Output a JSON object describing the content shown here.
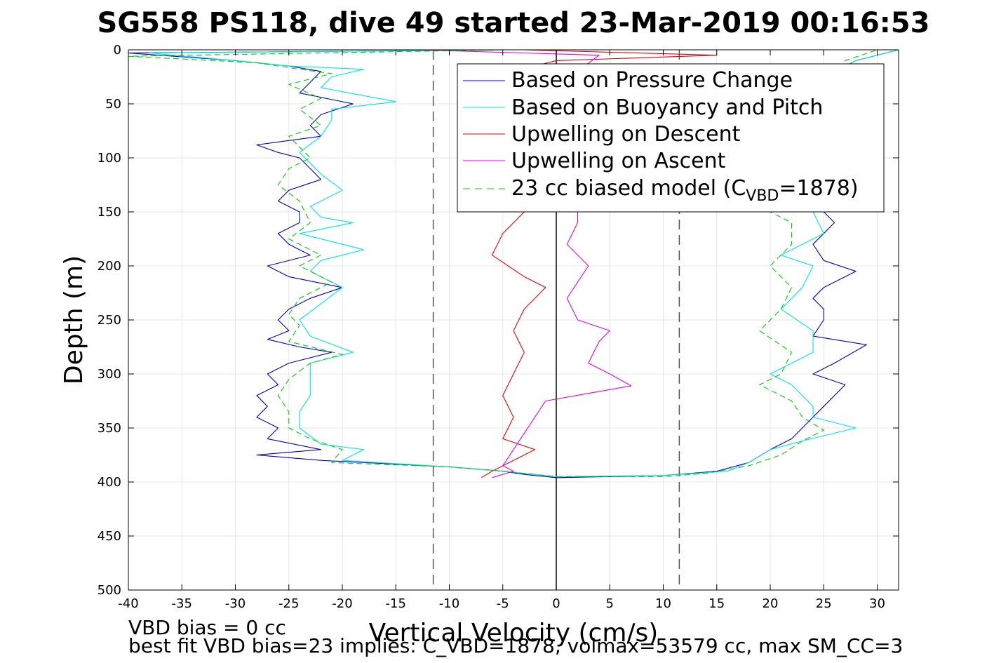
{
  "chart_data": {
    "type": "line",
    "title": "SG558 PS118, dive 49 started 23-Mar-2019 00:16:53",
    "xlabel": "Vertical Velocity (cm/s)",
    "ylabel": "Depth (m)",
    "xlim": [
      -40,
      32
    ],
    "ylim": [
      0,
      500
    ],
    "y_reversed": true,
    "grid": true,
    "legend_position": "top-right",
    "xticks": [
      -40,
      -35,
      -30,
      -25,
      -20,
      -15,
      -10,
      -5,
      0,
      5,
      10,
      15,
      20,
      25,
      30
    ],
    "yticks": [
      0,
      50,
      100,
      150,
      200,
      250,
      300,
      350,
      400,
      450,
      500
    ],
    "reference_lines": [
      {
        "x": -11.5,
        "style": "dashed",
        "color": "#555555"
      },
      {
        "x": 0,
        "style": "solid",
        "color": "#000000"
      },
      {
        "x": 11.5,
        "style": "dashed",
        "color": "#555555"
      }
    ],
    "legend": [
      {
        "label": "Based on Pressure Change",
        "color": "#0000cc",
        "style": "solid"
      },
      {
        "label": "Based on Buoyancy and Pitch",
        "color": "#00e5e5",
        "style": "solid"
      },
      {
        "label": "Upwelling on Descent",
        "color": "#e60000",
        "style": "solid"
      },
      {
        "label": "Upwelling on Ascent",
        "color": "#e600e6",
        "style": "solid"
      },
      {
        "label_main": "23 cc biased model (C",
        "label_sub": "VBD",
        "label_tail": "=1878)",
        "color": "#00d000",
        "style": "dashed"
      }
    ],
    "series": [
      {
        "name": "Based on Pressure Change",
        "color": "#0000cc",
        "style": "solid",
        "points": [
          [
            -5,
            0
          ],
          [
            -40,
            3
          ],
          [
            -30,
            10
          ],
          [
            -25,
            15
          ],
          [
            -22,
            20
          ],
          [
            -23,
            30
          ],
          [
            -24,
            40
          ],
          [
            -19,
            50
          ],
          [
            -22,
            60
          ],
          [
            -23,
            70
          ],
          [
            -22,
            80
          ],
          [
            -28,
            88
          ],
          [
            -26,
            95
          ],
          [
            -24,
            100
          ],
          [
            -23,
            110
          ],
          [
            -22,
            120
          ],
          [
            -25,
            130
          ],
          [
            -26,
            140
          ],
          [
            -24,
            150
          ],
          [
            -24,
            160
          ],
          [
            -26,
            170
          ],
          [
            -25,
            180
          ],
          [
            -23,
            190
          ],
          [
            -27,
            200
          ],
          [
            -25,
            210
          ],
          [
            -20,
            220
          ],
          [
            -23,
            230
          ],
          [
            -25,
            240
          ],
          [
            -26,
            250
          ],
          [
            -25,
            260
          ],
          [
            -27,
            268
          ],
          [
            -24,
            275
          ],
          [
            -21,
            280
          ],
          [
            -25,
            290
          ],
          [
            -27,
            300
          ],
          [
            -26,
            310
          ],
          [
            -28,
            320
          ],
          [
            -27,
            330
          ],
          [
            -28,
            340
          ],
          [
            -26,
            350
          ],
          [
            -27,
            360
          ],
          [
            -22,
            370
          ],
          [
            -28,
            375
          ],
          [
            -22,
            380
          ],
          [
            -10,
            386
          ],
          [
            -5,
            390
          ],
          [
            -3,
            393
          ],
          [
            0,
            396
          ],
          [
            10,
            394
          ],
          [
            15,
            390
          ],
          [
            18,
            382
          ],
          [
            20,
            370
          ],
          [
            22,
            360
          ],
          [
            23,
            350
          ],
          [
            24,
            340
          ],
          [
            25,
            330
          ],
          [
            27,
            310
          ],
          [
            24,
            300
          ],
          [
            26,
            290
          ],
          [
            29,
            273
          ],
          [
            24,
            265
          ],
          [
            25,
            250
          ],
          [
            25,
            240
          ],
          [
            24,
            230
          ],
          [
            25,
            220
          ],
          [
            28,
            205
          ],
          [
            25,
            195
          ],
          [
            24,
            180
          ],
          [
            25,
            170
          ],
          [
            26,
            160
          ],
          [
            25,
            150
          ],
          [
            24,
            130
          ],
          [
            24,
            100
          ],
          [
            25,
            80
          ],
          [
            26,
            60
          ],
          [
            26,
            40
          ],
          [
            26,
            20
          ],
          [
            28,
            10
          ],
          [
            32,
            0
          ]
        ]
      },
      {
        "name": "Based on Buoyancy and Pitch",
        "color": "#00e5e5",
        "style": "solid",
        "points": [
          [
            -5,
            0
          ],
          [
            -38,
            3
          ],
          [
            -30,
            10
          ],
          [
            -25,
            15
          ],
          [
            -18,
            18
          ],
          [
            -21,
            25
          ],
          [
            -22,
            35
          ],
          [
            -15,
            48
          ],
          [
            -21,
            55
          ],
          [
            -21,
            65
          ],
          [
            -22,
            80
          ],
          [
            -24,
            95
          ],
          [
            -23,
            105
          ],
          [
            -22,
            115
          ],
          [
            -20,
            130
          ],
          [
            -23,
            145
          ],
          [
            -22,
            155
          ],
          [
            -19,
            160
          ],
          [
            -24,
            170
          ],
          [
            -18,
            185
          ],
          [
            -22,
            195
          ],
          [
            -23,
            205
          ],
          [
            -20,
            220
          ],
          [
            -22,
            235
          ],
          [
            -24,
            250
          ],
          [
            -23,
            265
          ],
          [
            -19,
            280
          ],
          [
            -23,
            290
          ],
          [
            -23,
            320
          ],
          [
            -24,
            335
          ],
          [
            -24,
            350
          ],
          [
            -22,
            365
          ],
          [
            -18,
            370
          ],
          [
            -20,
            380
          ],
          [
            -10,
            386
          ],
          [
            -5,
            390
          ],
          [
            0,
            395
          ],
          [
            10,
            394
          ],
          [
            16,
            390
          ],
          [
            18,
            382
          ],
          [
            20,
            370
          ],
          [
            23,
            362
          ],
          [
            28,
            350
          ],
          [
            24,
            340
          ],
          [
            24,
            330
          ],
          [
            22,
            310
          ],
          [
            20,
            300
          ],
          [
            24,
            280
          ],
          [
            24,
            260
          ],
          [
            21,
            240
          ],
          [
            23,
            220
          ],
          [
            24,
            200
          ],
          [
            21,
            190
          ],
          [
            25,
            170
          ],
          [
            24,
            150
          ],
          [
            23,
            120
          ],
          [
            24,
            80
          ],
          [
            24,
            50
          ],
          [
            26,
            20
          ],
          [
            28,
            10
          ],
          [
            32,
            0
          ]
        ]
      },
      {
        "name": "Upwelling on Descent",
        "color": "#e60000",
        "style": "solid",
        "points": [
          [
            -3,
            0
          ],
          [
            15,
            5
          ],
          [
            0,
            10
          ],
          [
            -4,
            20
          ],
          [
            -3,
            40
          ],
          [
            -5,
            60
          ],
          [
            -6,
            80
          ],
          [
            -4,
            100
          ],
          [
            -3,
            130
          ],
          [
            -3,
            150
          ],
          [
            -5,
            170
          ],
          [
            -6,
            190
          ],
          [
            -3,
            210
          ],
          [
            -1,
            220
          ],
          [
            -3,
            240
          ],
          [
            -4,
            260
          ],
          [
            -3,
            280
          ],
          [
            -4,
            300
          ],
          [
            -5,
            320
          ],
          [
            -4,
            340
          ],
          [
            -5,
            360
          ],
          [
            -2,
            370
          ],
          [
            -4,
            380
          ],
          [
            -6,
            390
          ],
          [
            -7,
            396
          ]
        ]
      },
      {
        "name": "Upwelling on Ascent",
        "color": "#e600e6",
        "style": "solid",
        "points": [
          [
            -13,
            0
          ],
          [
            4,
            5
          ],
          [
            2,
            20
          ],
          [
            1,
            50
          ],
          [
            2,
            80
          ],
          [
            2,
            110
          ],
          [
            2,
            140
          ],
          [
            2,
            160
          ],
          [
            1,
            180
          ],
          [
            3,
            200
          ],
          [
            2,
            215
          ],
          [
            1,
            230
          ],
          [
            2,
            250
          ],
          [
            5,
            260
          ],
          [
            4,
            270
          ],
          [
            3,
            290
          ],
          [
            5,
            300
          ],
          [
            7,
            311
          ],
          [
            3,
            318
          ],
          [
            -1,
            325
          ],
          [
            -2,
            340
          ],
          [
            -3,
            355
          ],
          [
            -4,
            370
          ],
          [
            -5,
            385
          ],
          [
            -4,
            390
          ],
          [
            -6,
            396
          ]
        ]
      },
      {
        "name": "23 cc biased model (CVBD=1878)",
        "color": "#00d000",
        "style": "dashed",
        "points": [
          [
            -5,
            0
          ],
          [
            -40,
            6
          ],
          [
            -28,
            12
          ],
          [
            -24,
            18
          ],
          [
            -21,
            22
          ],
          [
            -25,
            32
          ],
          [
            -22,
            45
          ],
          [
            -24,
            55
          ],
          [
            -22,
            70
          ],
          [
            -25,
            80
          ],
          [
            -24,
            90
          ],
          [
            -23,
            100
          ],
          [
            -25,
            110
          ],
          [
            -26,
            125
          ],
          [
            -24,
            140
          ],
          [
            -23,
            160
          ],
          [
            -25,
            175
          ],
          [
            -22,
            190
          ],
          [
            -24,
            200
          ],
          [
            -21,
            215
          ],
          [
            -24,
            230
          ],
          [
            -25,
            245
          ],
          [
            -24,
            255
          ],
          [
            -25,
            270
          ],
          [
            -20,
            282
          ],
          [
            -23,
            290
          ],
          [
            -25,
            305
          ],
          [
            -26,
            320
          ],
          [
            -25,
            335
          ],
          [
            -25,
            350
          ],
          [
            -23,
            360
          ],
          [
            -20,
            370
          ],
          [
            -21,
            382
          ],
          [
            -10,
            386
          ],
          [
            -5,
            390
          ],
          [
            0,
            395
          ],
          [
            10,
            395
          ],
          [
            14,
            392
          ],
          [
            18,
            385
          ],
          [
            21,
            375
          ],
          [
            23,
            362
          ],
          [
            25,
            352
          ],
          [
            23,
            340
          ],
          [
            22,
            325
          ],
          [
            19,
            310
          ],
          [
            21,
            300
          ],
          [
            22,
            280
          ],
          [
            19,
            260
          ],
          [
            21,
            240
          ],
          [
            22,
            220
          ],
          [
            20,
            200
          ],
          [
            22,
            180
          ],
          [
            22,
            160
          ],
          [
            20,
            150
          ],
          [
            22,
            120
          ],
          [
            23,
            90
          ],
          [
            24,
            60
          ],
          [
            25,
            30
          ],
          [
            27,
            10
          ],
          [
            30,
            0
          ]
        ]
      }
    ]
  },
  "notes": {
    "line1": "VBD bias = 0 cc",
    "line2": "best fit VBD bias=23 implies: C_VBD=1878, volmax=53579 cc, max SM_CC=3"
  }
}
